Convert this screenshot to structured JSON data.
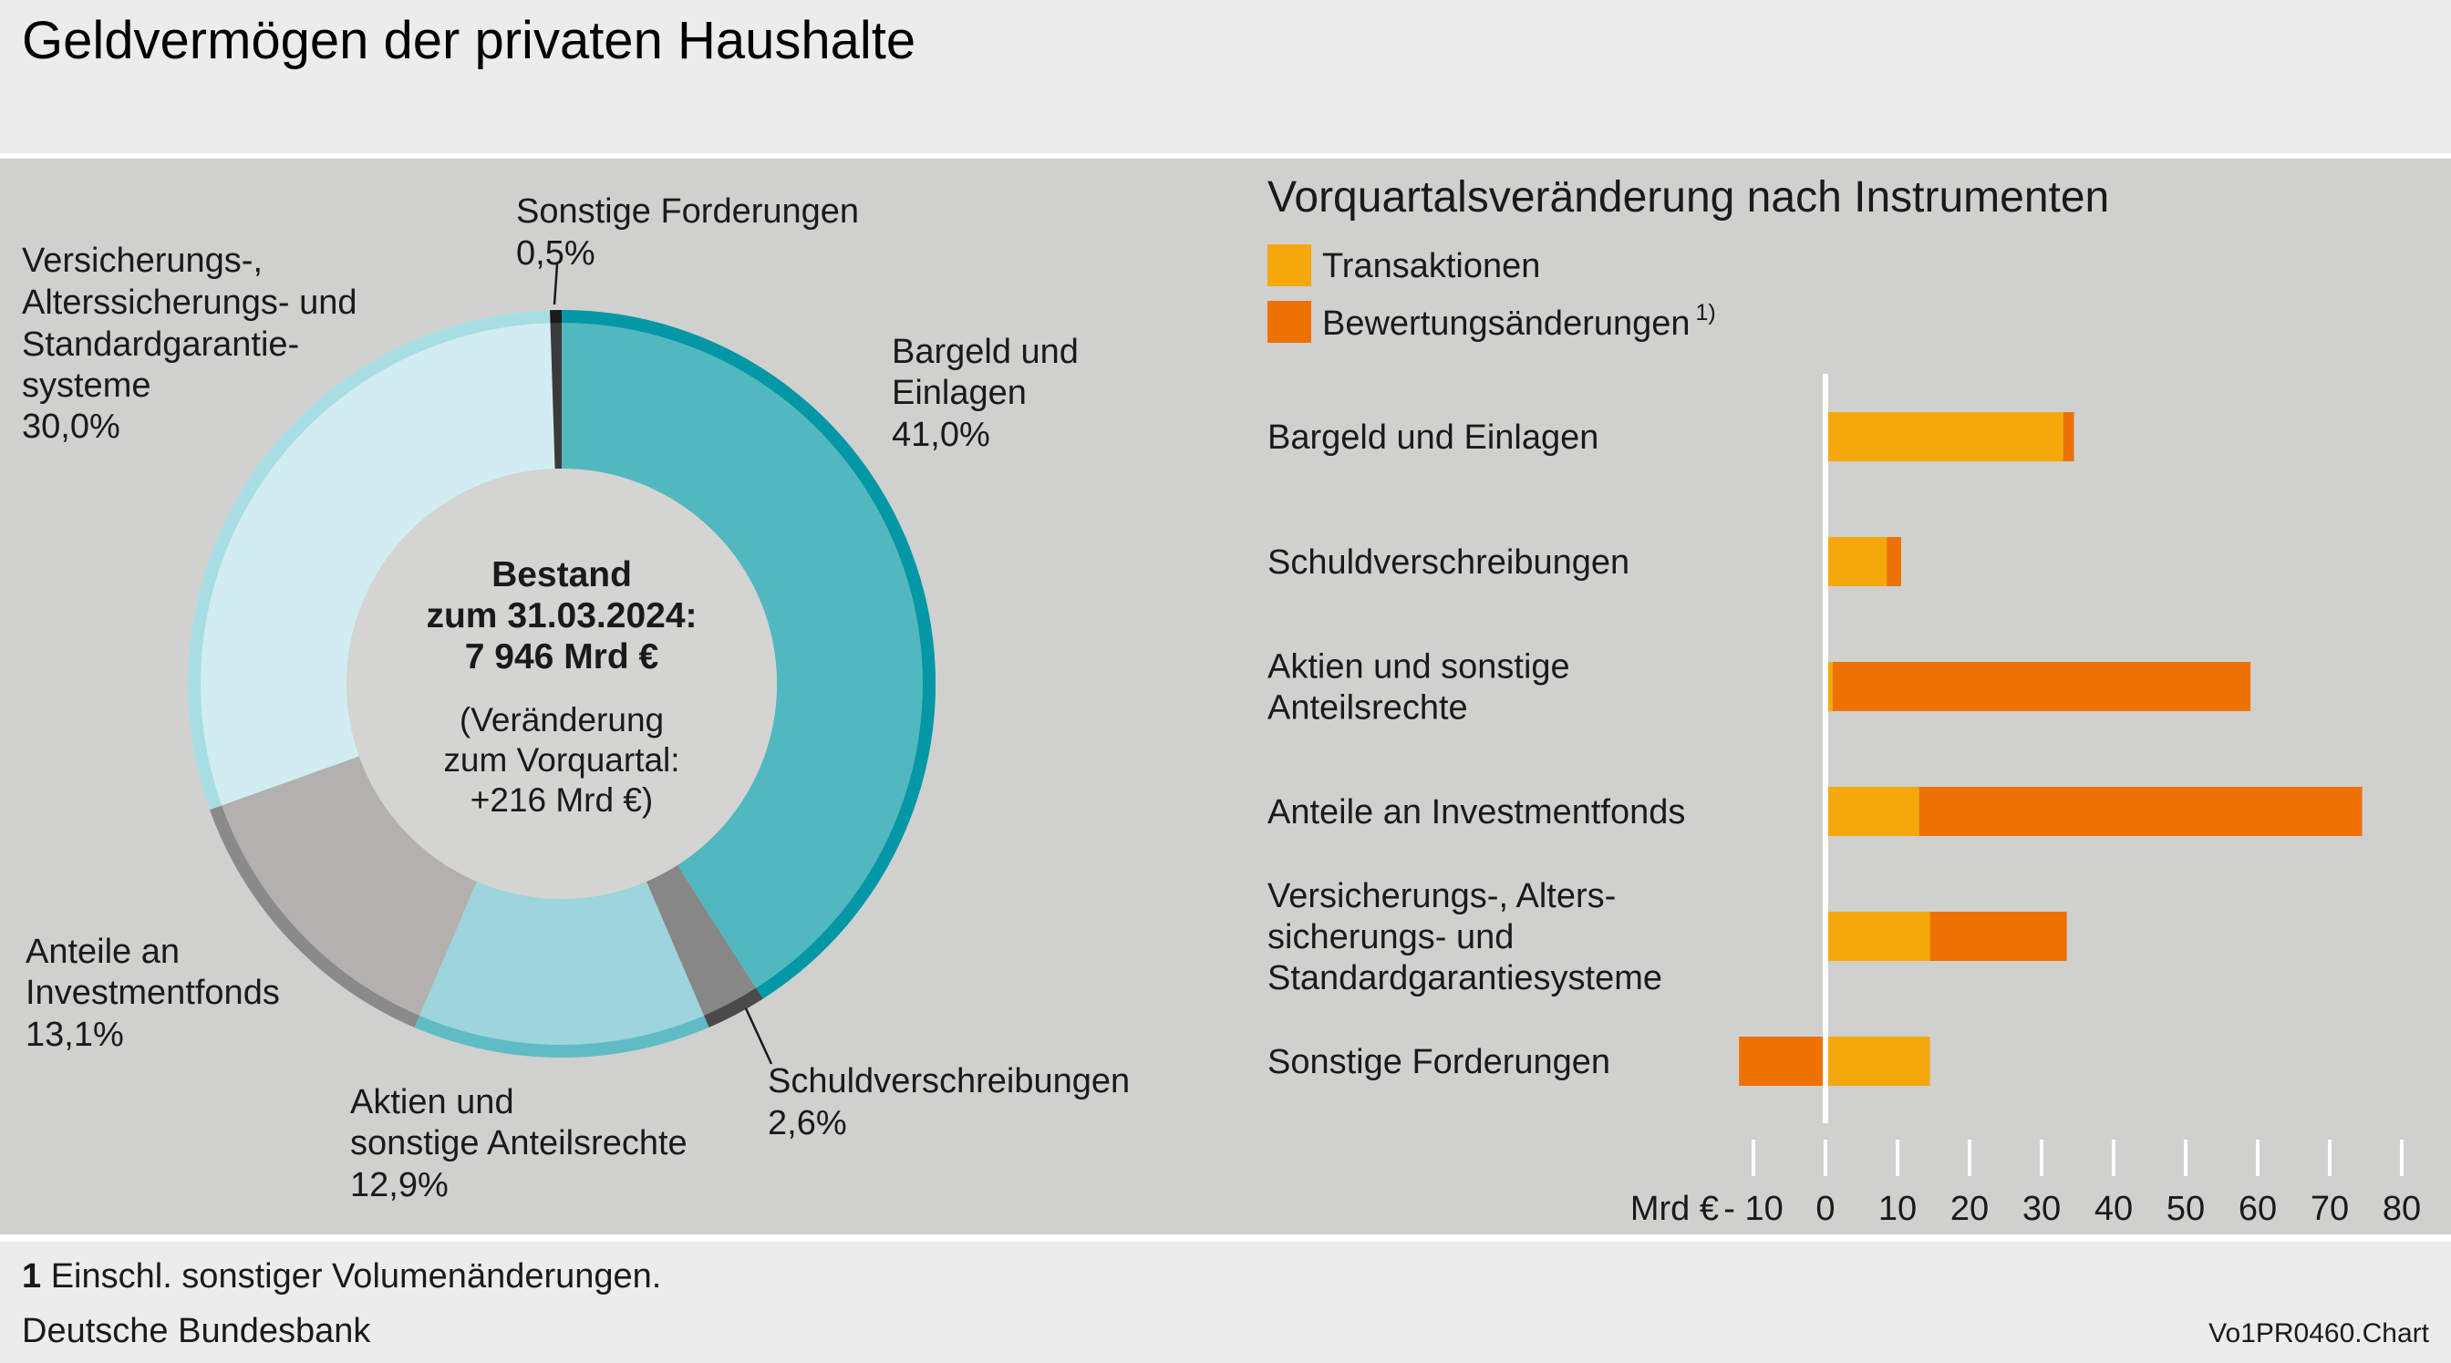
{
  "title": "Geldvermögen der privaten Haushalte",
  "donut": {
    "center_lines_bold": [
      "Bestand",
      "zum 31.03.2024:",
      "7 946 Mrd €"
    ],
    "center_lines": [
      "(Veränderung",
      "zum Vorquartal:",
      "+216 Mrd €)"
    ],
    "labels": {
      "sonstige": {
        "lines": [
          "Sonstige Forderungen"
        ],
        "pct": "0,5%"
      },
      "bargeld": {
        "lines": [
          "Bargeld und",
          "Einlagen"
        ],
        "pct": "41,0%"
      },
      "schuld": {
        "lines": [
          "Schuldverschreibungen"
        ],
        "pct": "2,6%"
      },
      "aktien": {
        "lines": [
          "Aktien und",
          "sonstige Anteilsrechte"
        ],
        "pct": "12,9%"
      },
      "fonds": {
        "lines": [
          "Anteile an",
          "Investmentfonds"
        ],
        "pct": "13,1%"
      },
      "versich": {
        "lines": [
          "Versicherungs-,",
          "Alterssicherungs- und",
          "Standardgarantie-",
          "systeme"
        ],
        "pct": "30,0%"
      }
    }
  },
  "bar_chart": {
    "title": "Vorquartalsveränderung nach Instrumenten",
    "legend": [
      {
        "label": "Transaktionen",
        "color": "#f5a80a"
      },
      {
        "label": "Bewertungsänderungen",
        "sup": "1)",
        "color": "#ee7203"
      }
    ],
    "axis_unit": "Mrd €",
    "ticks": [
      "- 10",
      "0",
      "10",
      "20",
      "30",
      "40",
      "50",
      "60",
      "70",
      "80"
    ],
    "tick_values": [
      -10,
      0,
      10,
      20,
      30,
      40,
      50,
      60,
      70,
      80
    ]
  },
  "chart_data": [
    {
      "type": "pie",
      "categories": [
        "Bargeld und Einlagen",
        "Schuldverschreibungen",
        "Aktien und sonstige Anteilsrechte",
        "Anteile an Investmentfonds",
        "Versicherungs-, Alterssicherungs- und Standardgarantiesysteme",
        "Sonstige Forderungen"
      ],
      "values": [
        41.0,
        2.6,
        12.9,
        13.1,
        30.0,
        0.5
      ],
      "colors": [
        "#52b8bf",
        "#878787",
        "#9cd5dc",
        "#b2b1b0",
        "#d1edf1",
        "#3a3a3a"
      ],
      "ring_colors": [
        "#0497a6",
        "#4a4a4a",
        "#5fbcc5",
        "#8a8a8a",
        "#a8dde3",
        "#1a1a1a"
      ]
    },
    {
      "type": "bar",
      "stacked": true,
      "orientation": "horizontal",
      "categories": [
        [
          "Bargeld und Einlagen"
        ],
        [
          "Schuldverschreibungen"
        ],
        [
          "Aktien und sonstige",
          "Anteilsrechte"
        ],
        [
          "Anteile an Investmentfonds"
        ],
        [
          "Versicherungs-, Alters-",
          "sicherungs- und",
          "Standardgarantiesysteme"
        ],
        [
          "Sonstige Forderungen"
        ]
      ],
      "series": [
        {
          "name": "Transaktionen",
          "values": [
            33,
            8.5,
            1,
            13,
            14.5,
            14.5
          ]
        },
        {
          "name": "Bewertungsänderungen",
          "values": [
            1.5,
            2,
            58,
            61.5,
            19,
            -12
          ]
        }
      ],
      "xlim": [
        -10,
        80
      ]
    }
  ]
}
